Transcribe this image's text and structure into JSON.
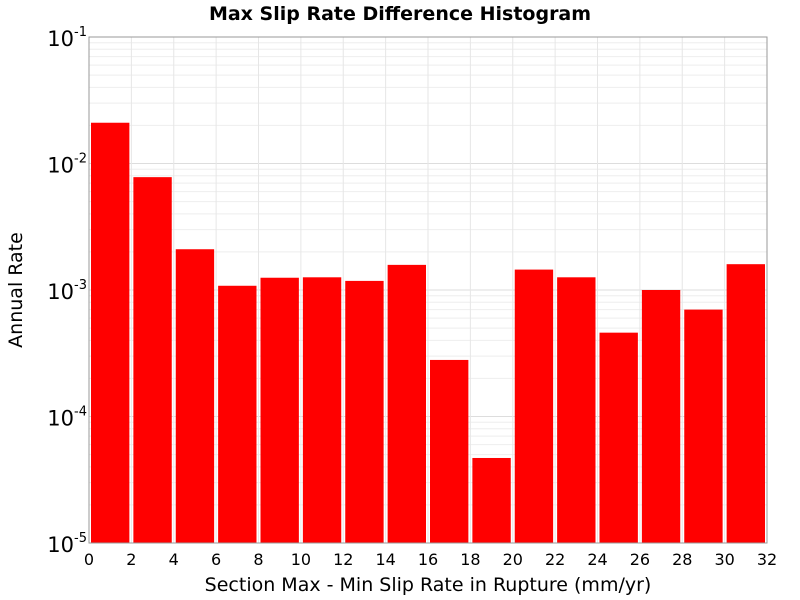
{
  "chart_data": {
    "type": "bar",
    "title": "Max Slip Rate Difference Histogram",
    "xlabel": "Section Max - Min Slip Rate in Rupture (mm/yr)",
    "ylabel": "Annual Rate",
    "y_scale": "log",
    "xlim": [
      0,
      32
    ],
    "ylim": [
      1e-05,
      0.1
    ],
    "bin_width": 2,
    "bar_color": "#ff0000",
    "grid": true,
    "x_ticks": [
      "0",
      "2",
      "4",
      "6",
      "8",
      "10",
      "12",
      "14",
      "16",
      "18",
      "20",
      "22",
      "24",
      "26",
      "28",
      "30",
      "32"
    ],
    "y_ticks": [
      {
        "base": "10",
        "exp": "-5"
      },
      {
        "base": "10",
        "exp": "-4"
      },
      {
        "base": "10",
        "exp": "-3"
      },
      {
        "base": "10",
        "exp": "-2"
      },
      {
        "base": "10",
        "exp": "-1"
      }
    ],
    "bins": [
      {
        "x_start": 0,
        "x_end": 2,
        "value": 0.021
      },
      {
        "x_start": 2,
        "x_end": 4,
        "value": 0.0078
      },
      {
        "x_start": 4,
        "x_end": 6,
        "value": 0.0021
      },
      {
        "x_start": 6,
        "x_end": 8,
        "value": 0.00108
      },
      {
        "x_start": 8,
        "x_end": 10,
        "value": 0.00125
      },
      {
        "x_start": 10,
        "x_end": 12,
        "value": 0.00126
      },
      {
        "x_start": 12,
        "x_end": 14,
        "value": 0.00118
      },
      {
        "x_start": 14,
        "x_end": 16,
        "value": 0.00158
      },
      {
        "x_start": 16,
        "x_end": 18,
        "value": 0.00028
      },
      {
        "x_start": 18,
        "x_end": 20,
        "value": 4.7e-05
      },
      {
        "x_start": 20,
        "x_end": 22,
        "value": 0.00145
      },
      {
        "x_start": 22,
        "x_end": 24,
        "value": 0.00126
      },
      {
        "x_start": 24,
        "x_end": 26,
        "value": 0.00046
      },
      {
        "x_start": 26,
        "x_end": 28,
        "value": 0.001
      },
      {
        "x_start": 28,
        "x_end": 30,
        "value": 0.0007
      },
      {
        "x_start": 30,
        "x_end": 32,
        "value": 0.0016
      }
    ]
  }
}
